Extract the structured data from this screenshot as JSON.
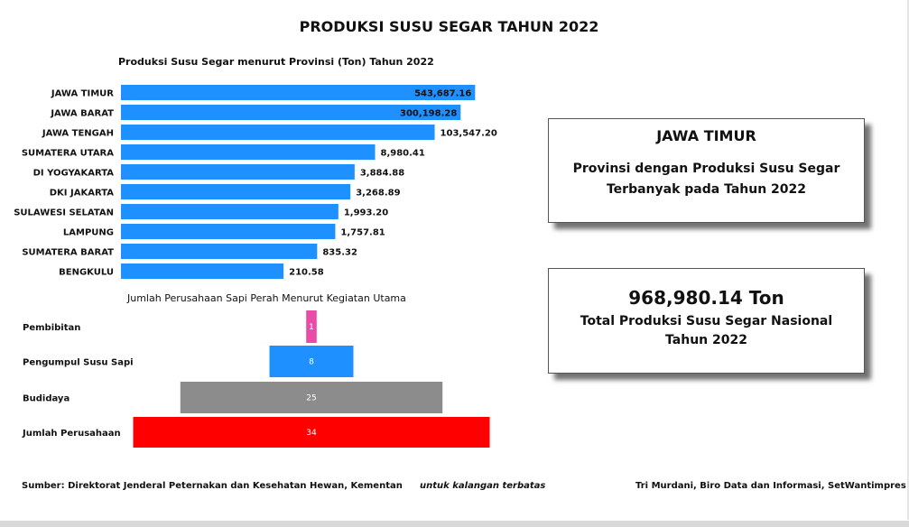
{
  "title": "PRODUKSI SUSU SEGAR TAHUN 2022",
  "chart_data": [
    {
      "type": "bar",
      "orientation": "horizontal",
      "title": "Produksi Susu Segar menurut Provinsi (Ton) Tahun 2022",
      "categories": [
        "JAWA TIMUR",
        "JAWA BARAT",
        "JAWA TENGAH",
        "SUMATERA UTARA",
        "DI YOGYAKARTA",
        "DKI JAKARTA",
        "SULAWESI SELATAN",
        "LAMPUNG",
        "SUMATERA BARAT",
        "BENGKULU"
      ],
      "values": [
        543687.16,
        300198.28,
        103547.2,
        8980.41,
        3884.88,
        3268.89,
        1993.2,
        1757.81,
        835.32,
        210.58
      ],
      "labels": [
        "543,687.16",
        "300,198.28",
        "103,547.20",
        "8,980.41",
        "3,884.88",
        "3,268.89",
        "1,993.20",
        "1,757.81",
        "835.32",
        "210.58"
      ],
      "color": "#1e90ff",
      "xlabel": "",
      "ylabel": ""
    },
    {
      "type": "bar",
      "orientation": "funnel",
      "title": "Jumlah Perusahaan Sapi Perah Menurut Kegiatan Utama",
      "categories": [
        "Pembibitan",
        "Pengumpul Susu Sapi",
        "Budidaya",
        "Jumlah Perusahaan"
      ],
      "values": [
        1,
        8,
        25,
        34
      ],
      "colors": [
        "#e84ba8",
        "#1e90ff",
        "#8c8c8c",
        "#ff0000"
      ]
    }
  ],
  "card_top": {
    "heading": "JAWA TIMUR",
    "text": "Provinsi dengan Produksi Susu Segar Terbanyak pada Tahun 2022"
  },
  "card_total": {
    "value": "968,980.14 Ton",
    "text": "Total Produksi Susu Segar Nasional Tahun 2022"
  },
  "footer": {
    "source": "Sumber: Direktorat Jenderal Peternakan dan Kesehatan Hewan, Kementan",
    "note": "untuk kalangan terbatas",
    "author": "Tri Murdani, Biro Data dan Informasi, SetWantimpres"
  }
}
